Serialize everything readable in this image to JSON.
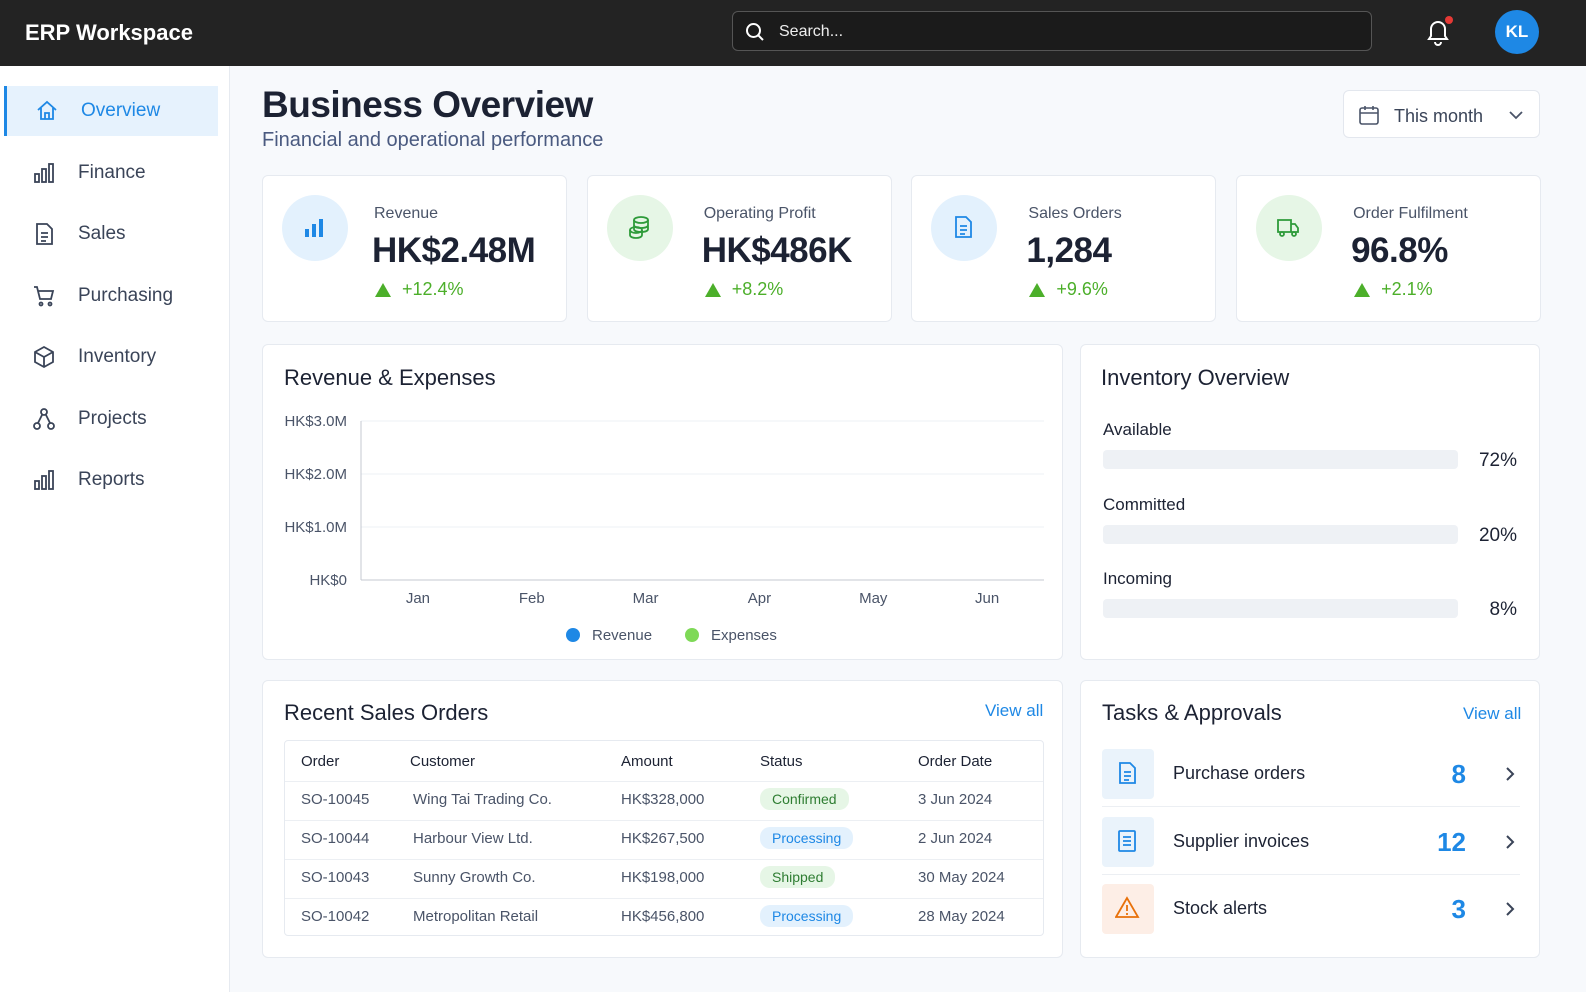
{
  "header": {
    "app_title": "ERP Workspace",
    "search_placeholder": "Search...",
    "avatar": "KL"
  },
  "sidebar": [
    "Overview",
    "Finance",
    "Sales",
    "Purchasing",
    "Inventory",
    "Projects",
    "Reports"
  ],
  "page": {
    "title": "Business Overview",
    "subtitle": "Financial and operational performance",
    "period": "This month"
  },
  "kpis": [
    {
      "label": "Revenue",
      "value": "HK$2.48M",
      "change": "+12.4%"
    },
    {
      "label": "Operating Profit",
      "value": "HK$486K",
      "change": "+8.2%"
    },
    {
      "label": "Sales Orders",
      "value": "1,284",
      "change": "+9.6%"
    },
    {
      "label": "Order Fulfilment",
      "value": "96.8%",
      "change": "+2.1%"
    }
  ],
  "chart_data": {
    "type": "line",
    "title": "Revenue & Expenses",
    "categories": [
      "Jan",
      "Feb",
      "Mar",
      "Apr",
      "May",
      "Jun"
    ],
    "series": [
      {
        "name": "Revenue",
        "color": "#1e88e5",
        "values": [
          null,
          null,
          null,
          null,
          null,
          null
        ]
      },
      {
        "name": "Expenses",
        "color": "#7ed957",
        "values": [
          null,
          null,
          null,
          null,
          null,
          null
        ]
      }
    ],
    "ylim": [
      0,
      3000000
    ],
    "yticks": [
      {
        "value": 0,
        "label": "HK$0"
      },
      {
        "value": 1000000,
        "label": "HK$1.0M"
      },
      {
        "value": 2000000,
        "label": "HK$2.0M"
      },
      {
        "value": 3000000,
        "label": "HK$3.0M"
      }
    ],
    "grid": true
  },
  "inventory": {
    "title": "Inventory Overview",
    "items": [
      {
        "label": "Available",
        "percent": "72%"
      },
      {
        "label": "Committed",
        "percent": "20%"
      },
      {
        "label": "Incoming",
        "percent": "8%"
      }
    ]
  },
  "recent_orders": {
    "title": "Recent Sales Orders",
    "view_all": "View all",
    "columns": [
      "Order",
      "Customer",
      "Amount",
      "Status",
      "Order Date"
    ],
    "rows": [
      [
        "SO-10045",
        "Wing Tai Trading Co.",
        "HK$328,000",
        "Confirmed",
        "3 Jun 2024"
      ],
      [
        "SO-10044",
        "Harbour View Ltd.",
        "HK$267,500",
        "Processing",
        "2 Jun 2024"
      ],
      [
        "SO-10043",
        "Sunny Growth Co.",
        "HK$198,000",
        "Shipped",
        "30 May 2024"
      ],
      [
        "SO-10042",
        "Metropolitan Retail",
        "HK$456,800",
        "Processing",
        "28 May 2024"
      ]
    ]
  },
  "tasks": {
    "title": "Tasks & Approvals",
    "view_all": "View all",
    "items": [
      {
        "label": "Purchase orders",
        "count": 8
      },
      {
        "label": "Supplier invoices",
        "count": 12
      },
      {
        "label": "Stock alerts",
        "count": 3
      }
    ]
  }
}
